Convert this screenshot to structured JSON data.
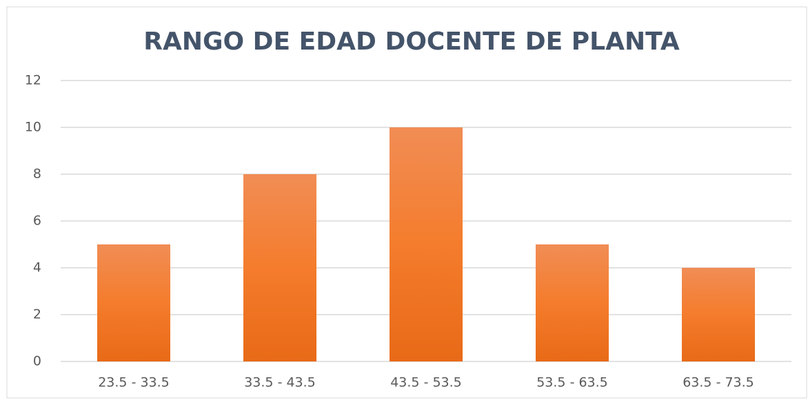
{
  "chart_data": {
    "type": "bar",
    "title": "RANGO DE EDAD DOCENTE DE PLANTA",
    "categories": [
      "23.5 - 33.5",
      "33.5 - 43.5",
      "43.5 - 53.5",
      "53.5 - 63.5",
      "63.5 - 73.5"
    ],
    "values": [
      5,
      8,
      10,
      5,
      4
    ],
    "color": "#f47c2c",
    "ylim": [
      0,
      12
    ],
    "yticks": [
      0,
      2,
      4,
      6,
      8,
      10,
      12
    ],
    "grid": true
  }
}
